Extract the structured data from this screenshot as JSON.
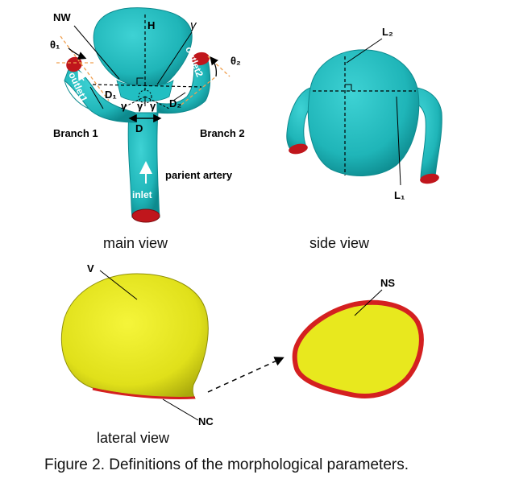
{
  "colors": {
    "vessel": "#1fb5b8",
    "vessel_dark": "#0f8f93",
    "outlet": "#c0161c",
    "sac": "#e6e61e",
    "sac_dark": "#b9b90f",
    "neck": "#d42020"
  },
  "main_view": {
    "labels": {
      "nw": "NW",
      "h": "H",
      "gamma": "γ",
      "theta1": "θ₁",
      "theta2": "θ₂",
      "outlet1": "outlet1",
      "outlet2": "outlet2",
      "d1": "D₁",
      "d2": "D₂",
      "d": "D",
      "gamma_left": "γ",
      "gamma_mid1": "γ",
      "gamma_mid2": "γ",
      "branch1": "Branch 1",
      "branch2": "Branch 2",
      "parient_artery": "parient artery",
      "inlet": "inlet"
    },
    "caption": "main view"
  },
  "side_view": {
    "labels": {
      "l1": "L₁",
      "l2": "L₂"
    },
    "caption": "side view"
  },
  "lateral_view": {
    "labels": {
      "v": "V",
      "nc": "NC"
    },
    "caption": "lateral view"
  },
  "ns_view": {
    "labels": {
      "ns": "NS"
    }
  },
  "figure_caption": "Figure 2. Definitions of the morphological parameters."
}
